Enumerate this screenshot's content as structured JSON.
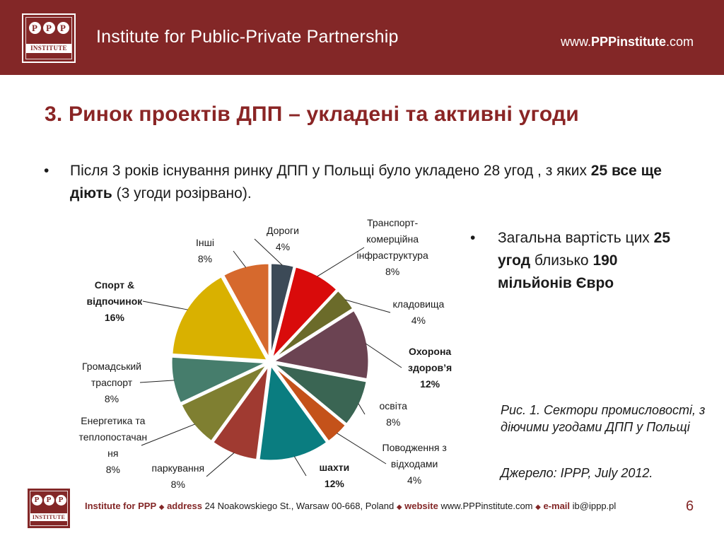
{
  "header": {
    "title": "Institute for Public-Private Partnership",
    "website_prefix": "www.",
    "website_bold": "PPPinstitute",
    "website_suffix": ".com",
    "logo_letters": [
      "P",
      "P",
      "P"
    ],
    "logo_word": "INSTITUTE",
    "color": "#832727"
  },
  "slide": {
    "title": "3.  Ринок проектів ДПП – укладені та активні угоди",
    "bullet1": {
      "dot": "•",
      "part1": "Після 3 років існування ринку ДПП у Польщі було укладено 28 угод , з яких ",
      "bold": "25 все ще діють",
      "part2": " (3 угоди розірвано)."
    },
    "bullet2": {
      "dot": "•",
      "part1": "Загальна вартість цих ",
      "bold1": "25 угод",
      "part2": " близько ",
      "bold2": "190 мільйонів Євро"
    },
    "caption": "Рис. 1. Сектори промисловості, з діючими угодами ДПП у Польщі",
    "source": "Джерело: IPPP, July 2012.",
    "page_number": "6"
  },
  "footer": {
    "org": "Institute for PPP",
    "address_label": "address",
    "address": "24 Noakowskiego St., Warsaw 00-668, Poland",
    "website_label": "website",
    "website": "www.PPPinstitute.com",
    "email_label": "e-mail",
    "email": "ib@ippp.pl",
    "separator": "◆"
  },
  "chart_data": {
    "type": "pie",
    "title": "",
    "unit": "%",
    "slices": [
      {
        "label": "Дороги\n4%",
        "value": 4,
        "color": "#3c4a57",
        "bold": false
      },
      {
        "label": "Транспорт-\nкомерційна\nінфраструктура\n8%",
        "value": 8,
        "color": "#d90b0b",
        "bold": false
      },
      {
        "label": "кладовища\n4%",
        "value": 4,
        "color": "#6b6b2a",
        "bold": false
      },
      {
        "label": "Охорона\nздоров’я\n12%",
        "value": 12,
        "color": "#6b4352",
        "bold": true
      },
      {
        "label": "освіта\n8%",
        "value": 8,
        "color": "#3a6553",
        "bold": false
      },
      {
        "label": "Поводження з\nвідходами\n4%",
        "value": 4,
        "color": "#c4521a",
        "bold": false
      },
      {
        "label": "шахти\n12%",
        "value": 12,
        "color": "#0a7d80",
        "bold": true
      },
      {
        "label": "паркування\n8%",
        "value": 8,
        "color": "#a03a31",
        "bold": false
      },
      {
        "label": "Енергетика та\nтеплопостачан\nня\n8%",
        "value": 8,
        "color": "#7f7f31",
        "bold": false
      },
      {
        "label": "Громадський\nтраспорт\n8%",
        "value": 8,
        "color": "#467d6c",
        "bold": false
      },
      {
        "label": "Спорт &\nвідпочинок\n16%",
        "value": 16,
        "color": "#d9b100",
        "bold": true
      },
      {
        "label": "Інші\n8%",
        "value": 8,
        "color": "#d6692d",
        "bold": false
      }
    ]
  }
}
